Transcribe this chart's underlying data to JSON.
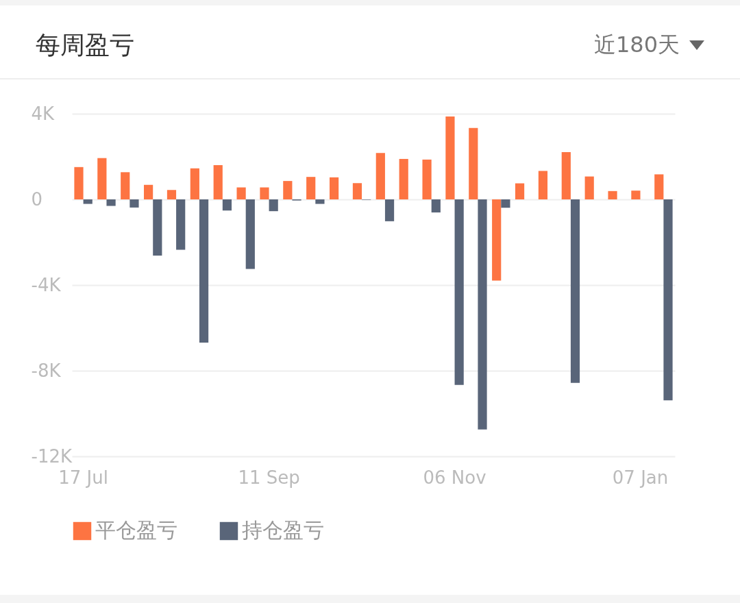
{
  "chart_data": {
    "type": "bar",
    "title": "每周盈亏",
    "annotations": [
      "近180天"
    ],
    "categories": [
      "17 Jul",
      null,
      null,
      null,
      null,
      null,
      null,
      null,
      "11 Sep",
      null,
      null,
      null,
      null,
      null,
      null,
      null,
      "06 Nov",
      null,
      null,
      null,
      null,
      null,
      null,
      null,
      "07 Jan",
      null
    ],
    "series": [
      {
        "name": "平仓盈亏",
        "color": "#fd7442",
        "values": [
          1510,
          1930,
          1270,
          680,
          440,
          1450,
          1600,
          560,
          560,
          860,
          1050,
          1030,
          760,
          2170,
          1890,
          1860,
          3870,
          3340,
          -3790,
          750,
          1330,
          2210,
          1070,
          390,
          410,
          1170
        ]
      },
      {
        "name": "持仓盈亏",
        "color": "#596579",
        "values": [
          -210,
          -300,
          -380,
          -2620,
          -2350,
          -6690,
          -520,
          -3250,
          -550,
          -50,
          -210,
          0,
          -20,
          -1020,
          0,
          -610,
          -8660,
          -10740,
          -390,
          0,
          0,
          -8570,
          0,
          0,
          0,
          -9380
        ]
      }
    ],
    "ylim": [
      -12000,
      4000
    ],
    "yticks": [
      {
        "value": 4000,
        "label": "4K"
      },
      {
        "value": 0,
        "label": "0"
      },
      {
        "value": -4000,
        "label": "-4K"
      },
      {
        "value": -8000,
        "label": "-8K"
      },
      {
        "value": -12000,
        "label": "-12K"
      }
    ],
    "grid": "y",
    "legend": "bottom"
  }
}
